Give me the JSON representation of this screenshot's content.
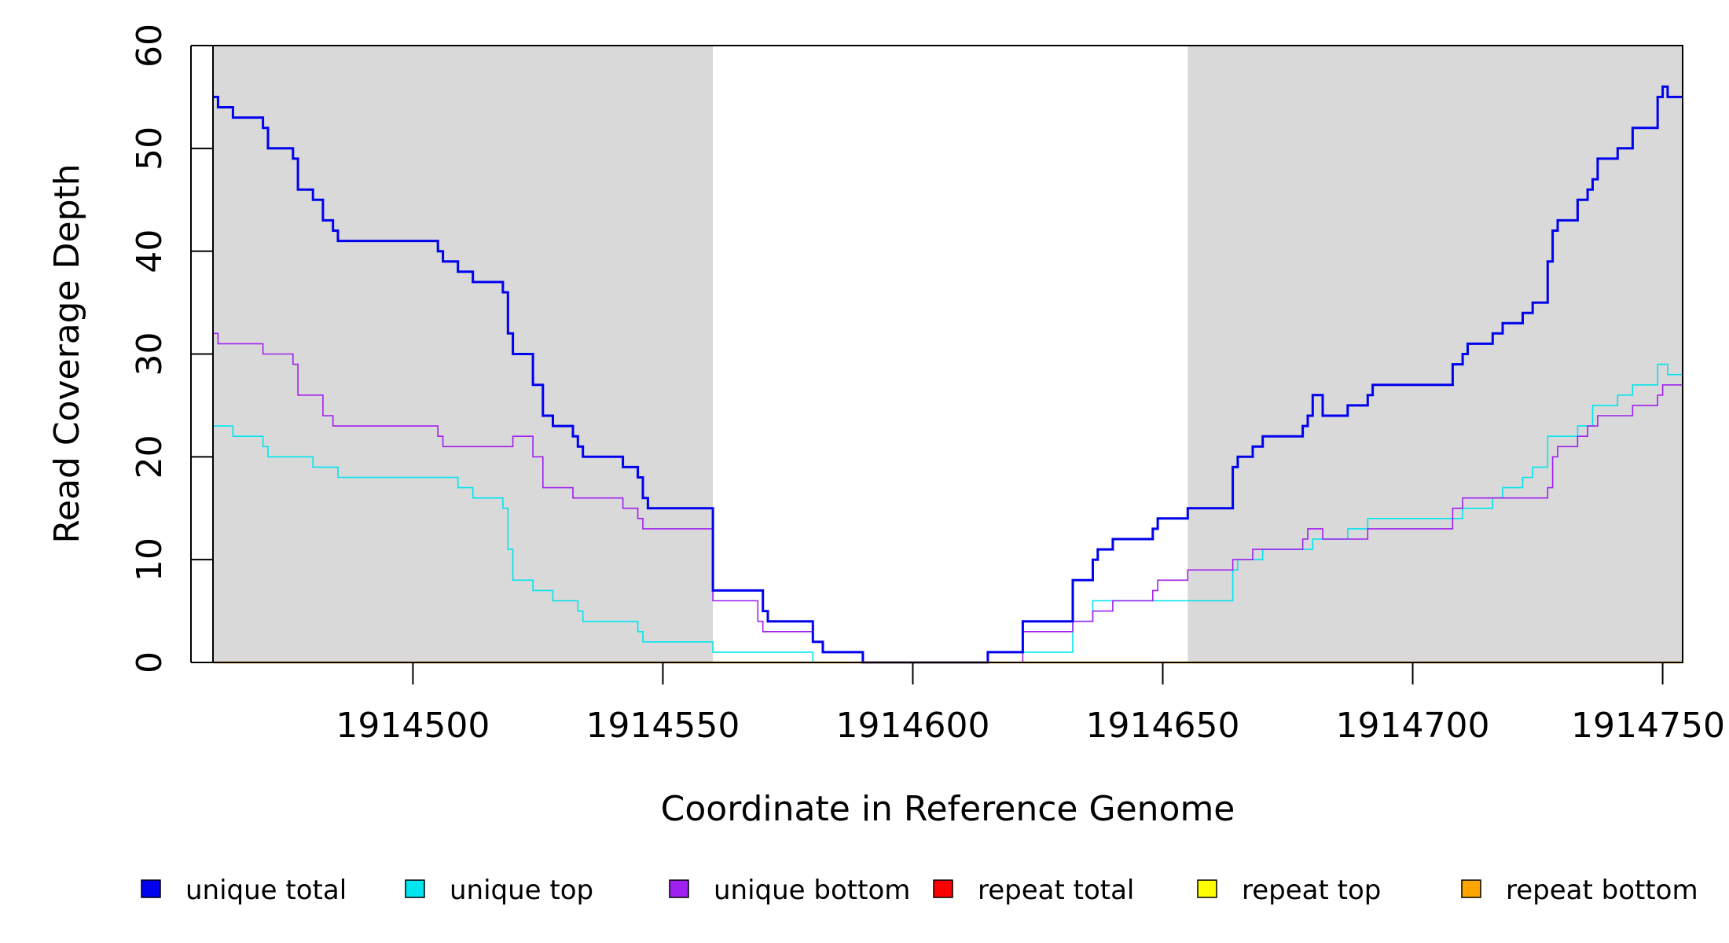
{
  "chart_data": {
    "type": "line",
    "step": true,
    "xlabel": "Coordinate in Reference Genome",
    "ylabel": "Read Coverage Depth",
    "xlim": [
      1914460,
      1914754
    ],
    "ylim": [
      0,
      60
    ],
    "x_ticks": [
      1914500,
      1914550,
      1914600,
      1914650,
      1914700,
      1914750
    ],
    "y_ticks": [
      0,
      10,
      20,
      30,
      40,
      50,
      60
    ],
    "shaded_regions": [
      {
        "from": 1914460,
        "to": 1914560,
        "color": "#d9d9d9"
      },
      {
        "from": 1914655,
        "to": 1914754,
        "color": "#d9d9d9"
      }
    ],
    "legend_position": "bottom",
    "series": [
      {
        "name": "unique total",
        "color": "#0000ee",
        "points": [
          [
            1914460,
            55
          ],
          [
            1914461,
            54
          ],
          [
            1914464,
            53
          ],
          [
            1914470,
            52
          ],
          [
            1914471,
            50
          ],
          [
            1914476,
            49
          ],
          [
            1914477,
            46
          ],
          [
            1914480,
            45
          ],
          [
            1914482,
            43
          ],
          [
            1914484,
            42
          ],
          [
            1914485,
            41
          ],
          [
            1914505,
            40
          ],
          [
            1914506,
            39
          ],
          [
            1914509,
            38
          ],
          [
            1914512,
            37
          ],
          [
            1914518,
            36
          ],
          [
            1914519,
            32
          ],
          [
            1914520,
            30
          ],
          [
            1914524,
            27
          ],
          [
            1914526,
            24
          ],
          [
            1914528,
            23
          ],
          [
            1914532,
            22
          ],
          [
            1914533,
            21
          ],
          [
            1914534,
            20
          ],
          [
            1914542,
            19
          ],
          [
            1914545,
            18
          ],
          [
            1914546,
            16
          ],
          [
            1914547,
            15
          ],
          [
            1914560,
            7
          ],
          [
            1914570,
            5
          ],
          [
            1914571,
            4
          ],
          [
            1914580,
            2
          ],
          [
            1914582,
            1
          ],
          [
            1914590,
            0
          ],
          [
            1914615,
            1
          ],
          [
            1914622,
            4
          ],
          [
            1914632,
            8
          ],
          [
            1914636,
            10
          ],
          [
            1914637,
            11
          ],
          [
            1914640,
            12
          ],
          [
            1914648,
            13
          ],
          [
            1914649,
            14
          ],
          [
            1914655,
            15
          ],
          [
            1914664,
            19
          ],
          [
            1914665,
            20
          ],
          [
            1914668,
            21
          ],
          [
            1914670,
            22
          ],
          [
            1914678,
            23
          ],
          [
            1914679,
            24
          ],
          [
            1914680,
            26
          ],
          [
            1914682,
            24
          ],
          [
            1914687,
            25
          ],
          [
            1914691,
            26
          ],
          [
            1914692,
            27
          ],
          [
            1914708,
            29
          ],
          [
            1914710,
            30
          ],
          [
            1914711,
            31
          ],
          [
            1914716,
            32
          ],
          [
            1914718,
            33
          ],
          [
            1914722,
            34
          ],
          [
            1914724,
            35
          ],
          [
            1914727,
            39
          ],
          [
            1914728,
            42
          ],
          [
            1914729,
            43
          ],
          [
            1914733,
            45
          ],
          [
            1914735,
            46
          ],
          [
            1914736,
            47
          ],
          [
            1914737,
            49
          ],
          [
            1914741,
            50
          ],
          [
            1914744,
            52
          ],
          [
            1914749,
            55
          ],
          [
            1914750,
            56
          ],
          [
            1914751,
            55
          ],
          [
            1914754,
            55
          ]
        ]
      },
      {
        "name": "unique top",
        "color": "#00e5ee",
        "points": [
          [
            1914460,
            23
          ],
          [
            1914464,
            22
          ],
          [
            1914470,
            21
          ],
          [
            1914471,
            20
          ],
          [
            1914480,
            19
          ],
          [
            1914485,
            18
          ],
          [
            1914509,
            17
          ],
          [
            1914512,
            16
          ],
          [
            1914518,
            15
          ],
          [
            1914519,
            11
          ],
          [
            1914520,
            8
          ],
          [
            1914524,
            7
          ],
          [
            1914528,
            6
          ],
          [
            1914533,
            5
          ],
          [
            1914534,
            4
          ],
          [
            1914545,
            3
          ],
          [
            1914546,
            2
          ],
          [
            1914560,
            1
          ],
          [
            1914580,
            0
          ],
          [
            1914615,
            1
          ],
          [
            1914632,
            4
          ],
          [
            1914636,
            6
          ],
          [
            1914664,
            9
          ],
          [
            1914665,
            10
          ],
          [
            1914670,
            11
          ],
          [
            1914680,
            12
          ],
          [
            1914687,
            13
          ],
          [
            1914691,
            14
          ],
          [
            1914710,
            15
          ],
          [
            1914716,
            16
          ],
          [
            1914718,
            17
          ],
          [
            1914722,
            18
          ],
          [
            1914724,
            19
          ],
          [
            1914727,
            22
          ],
          [
            1914733,
            23
          ],
          [
            1914736,
            25
          ],
          [
            1914741,
            26
          ],
          [
            1914744,
            27
          ],
          [
            1914749,
            29
          ],
          [
            1914751,
            28
          ],
          [
            1914754,
            28
          ]
        ]
      },
      {
        "name": "unique bottom",
        "color": "#a020f0",
        "points": [
          [
            1914460,
            32
          ],
          [
            1914461,
            31
          ],
          [
            1914470,
            30
          ],
          [
            1914476,
            29
          ],
          [
            1914477,
            26
          ],
          [
            1914482,
            24
          ],
          [
            1914484,
            23
          ],
          [
            1914505,
            22
          ],
          [
            1914506,
            21
          ],
          [
            1914520,
            22
          ],
          [
            1914524,
            20
          ],
          [
            1914526,
            17
          ],
          [
            1914532,
            16
          ],
          [
            1914542,
            15
          ],
          [
            1914545,
            14
          ],
          [
            1914546,
            13
          ],
          [
            1914560,
            6
          ],
          [
            1914569,
            4
          ],
          [
            1914570,
            3
          ],
          [
            1914580,
            2
          ],
          [
            1914582,
            1
          ],
          [
            1914590,
            0
          ],
          [
            1914622,
            3
          ],
          [
            1914632,
            4
          ],
          [
            1914636,
            5
          ],
          [
            1914640,
            6
          ],
          [
            1914648,
            7
          ],
          [
            1914649,
            8
          ],
          [
            1914655,
            9
          ],
          [
            1914664,
            10
          ],
          [
            1914668,
            11
          ],
          [
            1914678,
            12
          ],
          [
            1914679,
            13
          ],
          [
            1914682,
            12
          ],
          [
            1914691,
            13
          ],
          [
            1914708,
            15
          ],
          [
            1914710,
            16
          ],
          [
            1914727,
            17
          ],
          [
            1914728,
            20
          ],
          [
            1914729,
            21
          ],
          [
            1914733,
            22
          ],
          [
            1914735,
            23
          ],
          [
            1914737,
            24
          ],
          [
            1914744,
            25
          ],
          [
            1914749,
            26
          ],
          [
            1914750,
            27
          ],
          [
            1914754,
            27
          ]
        ]
      },
      {
        "name": "repeat total",
        "color": "#ff0000",
        "points": [
          [
            1914460,
            0
          ],
          [
            1914754,
            0
          ]
        ]
      },
      {
        "name": "repeat top",
        "color": "#ffff00",
        "points": [
          [
            1914460,
            0
          ],
          [
            1914754,
            0
          ]
        ]
      },
      {
        "name": "repeat bottom",
        "color": "#ffa500",
        "points": [
          [
            1914460,
            0
          ],
          [
            1914754,
            0
          ]
        ]
      }
    ]
  }
}
